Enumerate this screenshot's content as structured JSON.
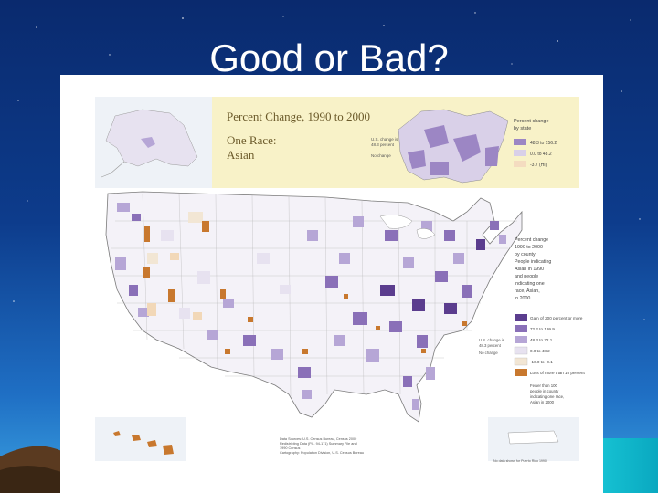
{
  "slide": {
    "title": "Good or Bad?"
  },
  "map": {
    "header_title": "Percent Change, 1990 to 2000",
    "header_subtitle_1": "One Race:",
    "header_subtitle_2": "Asian",
    "state_legend": {
      "title_1": "Percent change",
      "title_2": "by state",
      "items": [
        "48.3 to 156.2",
        "0.0 to 48.2",
        "-3.7 (HI)"
      ],
      "colors": [
        "#9c86c4",
        "#d9d0e8",
        "#f4dcc0"
      ],
      "us_change_1": "U.S. change is",
      "us_change_2": "48.3 percent",
      "no_change": "No change"
    },
    "county_legend": {
      "title": [
        "Percent change",
        "1990 to 2000",
        "by county",
        "People indicating",
        "Asian in 1990",
        "and people",
        "indicating one",
        "race, Asian,",
        "in 2000"
      ],
      "items": [
        "Gain of 200 percent or more",
        "72.2 to 199.9",
        "48.3 to 72.1",
        "0.0 to 48.2",
        "-10.0 to -0.1",
        "Loss of more than 10 percent"
      ],
      "colors": [
        "#5b3d8e",
        "#8a70b8",
        "#b6a6d6",
        "#e7e2f0",
        "#f2e6d4",
        "#c8782e"
      ],
      "us_change_1": "U.S. change is",
      "us_change_2": "48.3 percent",
      "no_change": "No change",
      "footnote": [
        "Fewer than 100",
        "people in county",
        "indicating one race,",
        "Asian in 2000"
      ]
    },
    "source": [
      "Data Sources: U.S. Census Bureau, Census 2000",
      "Redistricting Data (P.L. 94-171) Summary File and",
      "1990 Census",
      "Cartography: Population Division, U.S. Census Bureau"
    ],
    "puerto_rico_note": "No data shown for Puerto Rico 1990",
    "colors": {
      "header_bg": "#f8f2c8",
      "water": "#ffffff"
    }
  }
}
